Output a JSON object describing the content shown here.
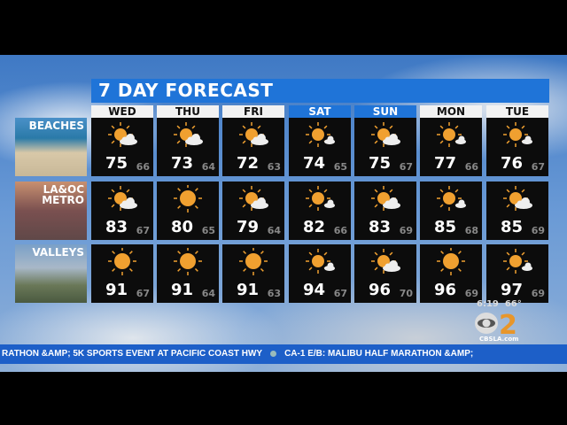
{
  "title": "7 DAY FORECAST",
  "days": [
    {
      "label": "WED",
      "highlight": false
    },
    {
      "label": "THU",
      "highlight": false
    },
    {
      "label": "FRI",
      "highlight": false
    },
    {
      "label": "SAT",
      "highlight": true
    },
    {
      "label": "SUN",
      "highlight": true
    },
    {
      "label": "MON",
      "highlight": false
    },
    {
      "label": "TUE",
      "highlight": false
    }
  ],
  "regions": [
    {
      "name": "BEACHES",
      "name2": "",
      "forecast": [
        {
          "icon": "partly-cloudy",
          "hi": "75",
          "lo": "66"
        },
        {
          "icon": "partly-cloudy",
          "hi": "73",
          "lo": "64"
        },
        {
          "icon": "partly-cloudy",
          "hi": "72",
          "lo": "63"
        },
        {
          "icon": "mostly-sunny",
          "hi": "74",
          "lo": "65"
        },
        {
          "icon": "partly-cloudy",
          "hi": "75",
          "lo": "67"
        },
        {
          "icon": "mostly-sunny",
          "hi": "77",
          "lo": "66"
        },
        {
          "icon": "mostly-sunny",
          "hi": "76",
          "lo": "67"
        }
      ]
    },
    {
      "name": "LA&OC",
      "name2": "METRO",
      "forecast": [
        {
          "icon": "partly-cloudy",
          "hi": "83",
          "lo": "67"
        },
        {
          "icon": "sunny",
          "hi": "80",
          "lo": "65"
        },
        {
          "icon": "partly-cloudy",
          "hi": "79",
          "lo": "64"
        },
        {
          "icon": "mostly-sunny",
          "hi": "82",
          "lo": "66"
        },
        {
          "icon": "partly-cloudy",
          "hi": "83",
          "lo": "69"
        },
        {
          "icon": "mostly-sunny",
          "hi": "85",
          "lo": "68"
        },
        {
          "icon": "partly-cloudy",
          "hi": "85",
          "lo": "69"
        }
      ]
    },
    {
      "name": "VALLEYS",
      "name2": "",
      "forecast": [
        {
          "icon": "sunny",
          "hi": "91",
          "lo": "67"
        },
        {
          "icon": "sunny",
          "hi": "91",
          "lo": "64"
        },
        {
          "icon": "sunny",
          "hi": "91",
          "lo": "63"
        },
        {
          "icon": "mostly-sunny",
          "hi": "94",
          "lo": "67"
        },
        {
          "icon": "partly-cloudy",
          "hi": "96",
          "lo": "70"
        },
        {
          "icon": "sunny",
          "hi": "96",
          "lo": "69"
        },
        {
          "icon": "mostly-sunny",
          "hi": "97",
          "lo": "69"
        }
      ]
    }
  ],
  "clock": {
    "time": "6:19",
    "temp": "66°"
  },
  "logo": {
    "number": "2",
    "site": "CBSLA.com"
  },
  "ticker": {
    "item1": "RATHON &AMP; 5K SPORTS EVENT AT PACIFIC COAST HWY",
    "item2": "CA-1 E/B: MALIBU HALF MARATHON &AMP;"
  },
  "colors": {
    "accent": "#1f74d8",
    "sun": "#f0a030",
    "ticker": "#1d5fc8"
  }
}
